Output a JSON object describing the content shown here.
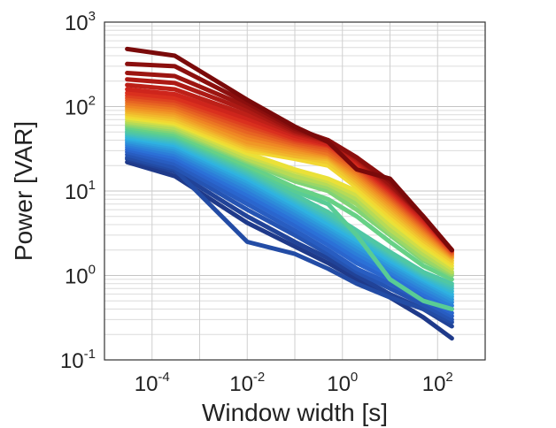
{
  "chart_data": {
    "type": "line",
    "title": "",
    "xlabel": "Window width [s]",
    "ylabel": "Power [VAR]",
    "x_scale": "log",
    "y_scale": "log",
    "xlim": [
      1e-05,
      1000
    ],
    "ylim": [
      0.1,
      1000
    ],
    "grid": true,
    "x_ticks": [
      {
        "value": 0.0001,
        "base": "10",
        "exp": "-4"
      },
      {
        "value": 0.01,
        "base": "10",
        "exp": "-2"
      },
      {
        "value": 1,
        "base": "10",
        "exp": "0"
      },
      {
        "value": 100,
        "base": "10",
        "exp": "2"
      }
    ],
    "y_ticks": [
      {
        "value": 0.1,
        "base": "10",
        "exp": "-1"
      },
      {
        "value": 1,
        "base": "10",
        "exp": "0"
      },
      {
        "value": 10,
        "base": "10",
        "exp": "1"
      },
      {
        "value": 100,
        "base": "10",
        "exp": "2"
      },
      {
        "value": 1000,
        "base": "10",
        "exp": "3"
      }
    ],
    "x": [
      3e-05,
      0.0003,
      0.01,
      0.1,
      0.5,
      2,
      10,
      50,
      200
    ],
    "series_count": 40,
    "colormap": "jet",
    "colormap_stops": [
      "#1f3a8a",
      "#2b6bd6",
      "#2fb4e0",
      "#5fd08a",
      "#f2e234",
      "#f08a24",
      "#d8281e",
      "#7a0a0a"
    ],
    "series": [
      {
        "values": [
          22,
          15,
          4.2,
          2.2,
          1.4,
          0.9,
          0.55,
          0.32,
          0.18
        ]
      },
      {
        "values": [
          24,
          17,
          5.0,
          2.5,
          1.6,
          1.0,
          0.6,
          0.4,
          0.25
        ]
      },
      {
        "values": [
          25,
          18,
          2.5,
          1.8,
          1.2,
          0.8,
          0.55,
          0.4,
          0.28
        ]
      },
      {
        "values": [
          27,
          19,
          6.0,
          3.0,
          1.8,
          1.1,
          0.7,
          0.45,
          0.3
        ]
      },
      {
        "values": [
          29,
          21,
          7.0,
          3.4,
          2.0,
          1.2,
          0.8,
          0.5,
          0.33
        ]
      },
      {
        "values": [
          31,
          23,
          8.0,
          3.9,
          2.3,
          1.4,
          0.9,
          0.55,
          0.36
        ]
      },
      {
        "values": [
          33,
          25,
          9.0,
          4.4,
          2.6,
          1.6,
          1.0,
          0.6,
          0.4
        ]
      },
      {
        "values": [
          35,
          27,
          10,
          4.9,
          2.9,
          1.8,
          1.1,
          0.66,
          0.44
        ]
      },
      {
        "values": [
          37,
          29,
          11,
          5.4,
          3.2,
          2.0,
          1.2,
          0.72,
          0.48
        ]
      },
      {
        "values": [
          39,
          31,
          12,
          5.9,
          3.5,
          2.2,
          1.3,
          0.78,
          0.52
        ]
      },
      {
        "values": [
          41,
          33,
          13,
          6.4,
          3.8,
          2.4,
          1.4,
          0.85,
          0.56
        ]
      },
      {
        "values": [
          43,
          35,
          14,
          6.9,
          4.1,
          2.6,
          1.5,
          0.9,
          0.6
        ]
      },
      {
        "values": [
          45,
          37,
          15,
          7.5,
          4.5,
          2.8,
          1.6,
          0.95,
          0.65
        ]
      },
      {
        "values": [
          47,
          39,
          16,
          8.0,
          4.8,
          3.0,
          1.7,
          1.0,
          0.7
        ]
      },
      {
        "values": [
          49,
          41,
          17,
          8.5,
          5.2,
          3.2,
          1.8,
          1.05,
          0.75
        ]
      },
      {
        "values": [
          51,
          43,
          18,
          9.0,
          5.6,
          3.4,
          1.9,
          1.1,
          0.8
        ]
      },
      {
        "values": [
          54,
          45,
          19,
          10,
          7.0,
          3.0,
          0.9,
          0.5,
          0.4
        ]
      },
      {
        "values": [
          57,
          47,
          20,
          11,
          8.0,
          5.0,
          2.5,
          1.3,
          0.9
        ]
      },
      {
        "values": [
          60,
          50,
          22,
          13,
          10,
          6.0,
          3.0,
          1.5,
          1.0
        ]
      },
      {
        "values": [
          63,
          53,
          23,
          14,
          11,
          7.0,
          3.2,
          1.6,
          1.05
        ]
      },
      {
        "values": [
          66,
          56,
          24,
          15,
          12,
          8.0,
          3.5,
          1.8,
          1.1
        ]
      },
      {
        "values": [
          70,
          60,
          26,
          17,
          13,
          9.0,
          4.0,
          2.0,
          1.2
        ]
      },
      {
        "values": [
          74,
          63,
          28,
          18,
          14,
          10,
          4.5,
          2.2,
          1.3
        ]
      },
      {
        "values": [
          78,
          66,
          30,
          24,
          20,
          11,
          5.0,
          2.4,
          1.4
        ]
      },
      {
        "values": [
          82,
          70,
          32,
          26,
          22,
          12,
          5.5,
          2.6,
          1.5
        ]
      },
      {
        "values": [
          87,
          75,
          34,
          26,
          24,
          13,
          6.0,
          2.8,
          1.6
        ]
      },
      {
        "values": [
          92,
          80,
          36,
          28,
          25,
          14,
          6.5,
          3.0,
          1.65
        ]
      },
      {
        "values": [
          97,
          85,
          38,
          30,
          26,
          15,
          7.0,
          3.2,
          1.7
        ]
      },
      {
        "values": [
          103,
          90,
          42,
          32,
          27,
          16,
          7.5,
          3.4,
          1.75
        ]
      },
      {
        "values": [
          110,
          96,
          46,
          34,
          28,
          17,
          8.0,
          3.6,
          1.8
        ]
      },
      {
        "values": [
          118,
          103,
          50,
          36,
          30,
          18,
          8.5,
          3.8,
          1.85
        ]
      },
      {
        "values": [
          126,
          110,
          55,
          38,
          32,
          19,
          9.0,
          4.0,
          1.9
        ]
      },
      {
        "values": [
          135,
          118,
          60,
          40,
          34,
          20,
          9.5,
          4.2,
          1.95
        ]
      },
      {
        "values": [
          145,
          127,
          65,
          42,
          35,
          21,
          10,
          4.4,
          2.0
        ]
      },
      {
        "values": [
          160,
          140,
          72,
          45,
          36,
          22,
          10.5,
          4.6,
          2.0
        ]
      },
      {
        "values": [
          180,
          160,
          80,
          48,
          38,
          23,
          11,
          4.8,
          2.0
        ]
      },
      {
        "values": [
          210,
          190,
          90,
          50,
          39,
          24,
          11.5,
          5.0,
          2.0
        ]
      },
      {
        "values": [
          250,
          230,
          100,
          52,
          40,
          25,
          12,
          5.0,
          2.0
        ]
      },
      {
        "values": [
          320,
          300,
          110,
          55,
          40,
          25,
          13,
          5.0,
          2.0
        ]
      },
      {
        "values": [
          480,
          400,
          120,
          58,
          38,
          18,
          14,
          5.0,
          2.0
        ]
      }
    ]
  }
}
